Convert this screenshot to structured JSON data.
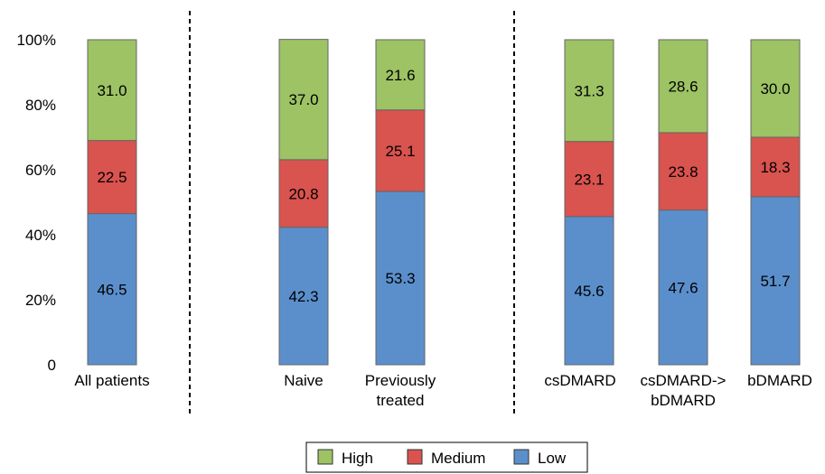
{
  "chart_data": {
    "type": "bar",
    "stacked": true,
    "categories": [
      [
        "All patients"
      ],
      [
        "Naive"
      ],
      [
        "Previously",
        "treated"
      ],
      [
        "csDMARD"
      ],
      [
        "csDMARD->",
        "bDMARD"
      ],
      [
        "bDMARD"
      ]
    ],
    "series": [
      {
        "name": "Low",
        "color": "#5b8fcc",
        "values": [
          46.5,
          42.3,
          53.3,
          45.6,
          47.6,
          51.7
        ]
      },
      {
        "name": "Medium",
        "color": "#d9534f",
        "values": [
          22.5,
          20.8,
          25.1,
          23.1,
          23.8,
          18.3
        ]
      },
      {
        "name": "High",
        "color": "#9dc364",
        "values": [
          31.0,
          37.0,
          21.6,
          31.3,
          28.6,
          30.0
        ]
      }
    ],
    "legend_order": [
      "High",
      "Medium",
      "Low"
    ],
    "y_ticks": [
      "0",
      "20%",
      "40%",
      "60%",
      "80%",
      "100%"
    ],
    "ylim": [
      0,
      100
    ],
    "legend_position": "bottom-center",
    "grid": false,
    "group_separators": "dashed vertical lines between groups"
  }
}
